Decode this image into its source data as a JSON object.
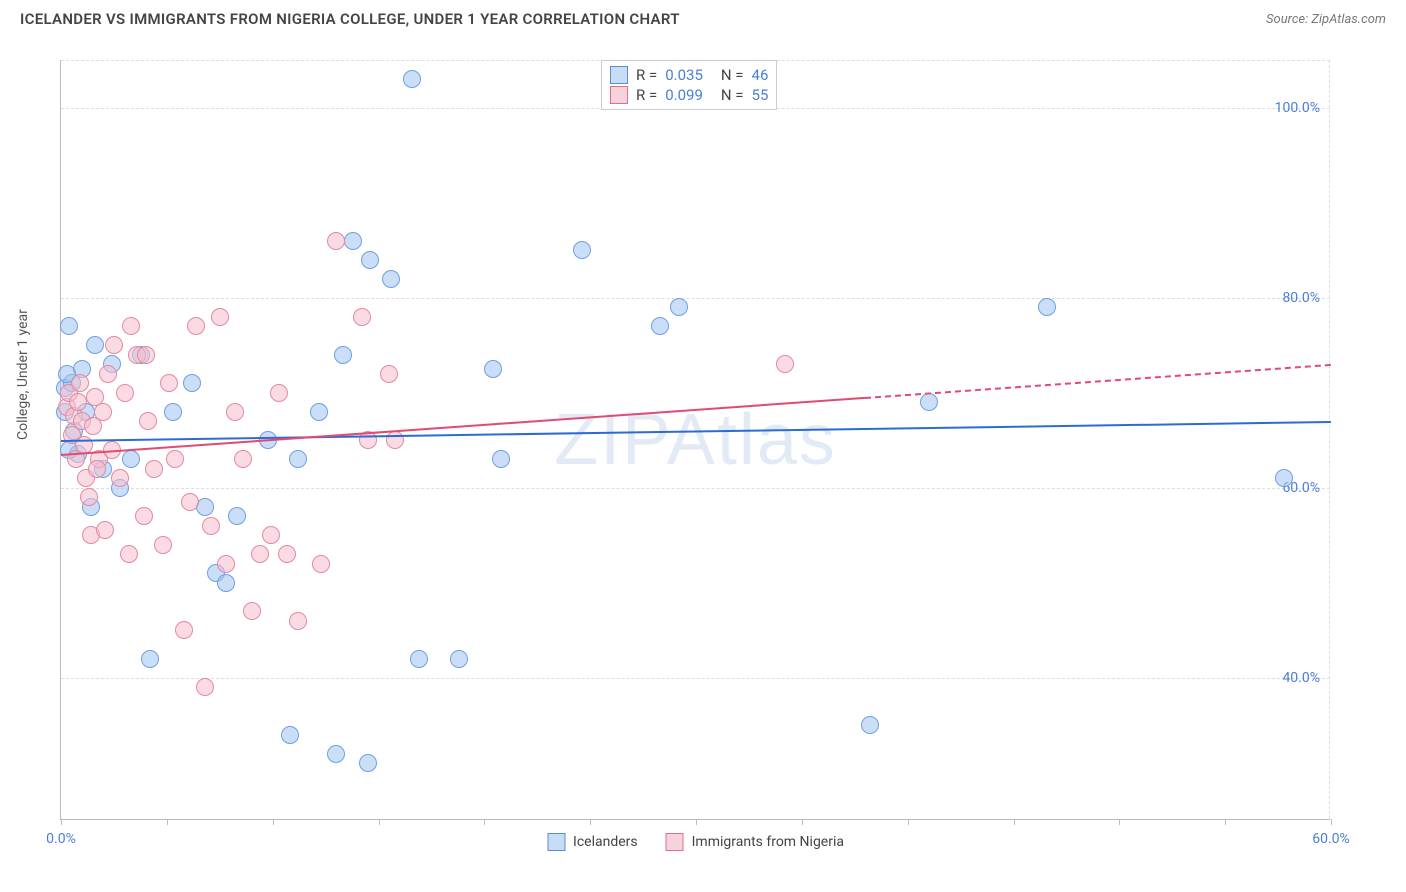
{
  "header": {
    "title": "ICELANDER VS IMMIGRANTS FROM NIGERIA COLLEGE, UNDER 1 YEAR CORRELATION CHART",
    "source": "Source: ZipAtlas.com"
  },
  "chart": {
    "type": "scatter",
    "watermark": "ZIPAtlas",
    "y_axis_label": "College, Under 1 year",
    "xlim": [
      0,
      60
    ],
    "ylim": [
      25,
      105
    ],
    "x_ticks": [
      0,
      5,
      10,
      15,
      20,
      25,
      30,
      35,
      40,
      45,
      50,
      55,
      60
    ],
    "x_tick_labels": {
      "0": "0.0%",
      "60": "60.0%"
    },
    "y_gridlines": [
      40,
      60,
      80,
      100
    ],
    "y_tick_labels": {
      "40": "40.0%",
      "60": "60.0%",
      "80": "80.0%",
      "100": "100.0%"
    },
    "marker_radius": 9,
    "marker_border_width": 1.5,
    "grid_color": "#dddddd",
    "axis_color": "#bbbbbb",
    "background_color": "#ffffff",
    "series": [
      {
        "name": "Icelanders",
        "fill": "rgba(160,195,240,0.55)",
        "stroke": "#6fa0e0",
        "swatch_fill": "#c7dcf5",
        "swatch_stroke": "#5b8dd6",
        "trend_color": "#2d6bd1",
        "trend": {
          "x1": 0,
          "y1": 65.0,
          "x2": 60,
          "y2": 67.0,
          "dash_from_x": null
        },
        "r": "0.035",
        "n": "46",
        "points": [
          [
            0.2,
            70.5
          ],
          [
            0.2,
            68
          ],
          [
            0.4,
            77
          ],
          [
            0.5,
            71
          ],
          [
            0.6,
            66
          ],
          [
            0.8,
            63.5
          ],
          [
            1.0,
            72.5
          ],
          [
            1.2,
            68
          ],
          [
            1.4,
            58
          ],
          [
            1.6,
            75
          ],
          [
            2.0,
            62
          ],
          [
            2.4,
            73
          ],
          [
            2.8,
            60
          ],
          [
            3.3,
            63
          ],
          [
            3.8,
            74
          ],
          [
            4.2,
            42
          ],
          [
            5.3,
            68
          ],
          [
            6.2,
            71
          ],
          [
            6.8,
            58
          ],
          [
            7.3,
            51
          ],
          [
            7.8,
            50
          ],
          [
            8.3,
            57
          ],
          [
            9.8,
            65
          ],
          [
            10.8,
            34
          ],
          [
            11.2,
            63
          ],
          [
            12.2,
            68
          ],
          [
            13.0,
            32
          ],
          [
            13.3,
            74
          ],
          [
            13.8,
            86
          ],
          [
            14.5,
            31
          ],
          [
            14.6,
            84
          ],
          [
            15.6,
            82
          ],
          [
            16.6,
            103
          ],
          [
            16.9,
            42
          ],
          [
            18.8,
            42
          ],
          [
            20.4,
            72.5
          ],
          [
            20.8,
            63
          ],
          [
            24.6,
            85
          ],
          [
            28.3,
            77
          ],
          [
            29.2,
            79
          ],
          [
            38.2,
            35
          ],
          [
            41.0,
            69
          ],
          [
            46.6,
            79
          ],
          [
            57.8,
            61
          ],
          [
            0.3,
            72
          ],
          [
            0.4,
            64
          ]
        ]
      },
      {
        "name": "Immigrants from Nigeria",
        "fill": "rgba(245,190,205,0.55)",
        "stroke": "#e389a0",
        "swatch_fill": "#f6d3dc",
        "swatch_stroke": "#e06f8c",
        "trend_color": "#e24a72",
        "trend": {
          "x1": 0,
          "y1": 63.5,
          "x2": 60,
          "y2": 73.0,
          "dash_from_x": 38
        },
        "r": "0.099",
        "n": "55",
        "points": [
          [
            0.3,
            68.5
          ],
          [
            0.4,
            70
          ],
          [
            0.6,
            67.5
          ],
          [
            0.8,
            69
          ],
          [
            1.0,
            67
          ],
          [
            1.2,
            61
          ],
          [
            1.4,
            55
          ],
          [
            1.6,
            69.5
          ],
          [
            1.8,
            63
          ],
          [
            2.0,
            68
          ],
          [
            2.2,
            72
          ],
          [
            2.5,
            75
          ],
          [
            2.8,
            61
          ],
          [
            3.0,
            70
          ],
          [
            3.3,
            77
          ],
          [
            3.6,
            74
          ],
          [
            3.9,
            57
          ],
          [
            4.1,
            67
          ],
          [
            4.4,
            62
          ],
          [
            4.8,
            54
          ],
          [
            5.1,
            71
          ],
          [
            5.4,
            63
          ],
          [
            5.8,
            45
          ],
          [
            6.1,
            58.5
          ],
          [
            6.4,
            77
          ],
          [
            6.8,
            39
          ],
          [
            7.1,
            56
          ],
          [
            7.5,
            78
          ],
          [
            7.8,
            52
          ],
          [
            8.2,
            68
          ],
          [
            8.6,
            63
          ],
          [
            9.0,
            47
          ],
          [
            9.4,
            53
          ],
          [
            9.9,
            55
          ],
          [
            10.3,
            70
          ],
          [
            10.7,
            53
          ],
          [
            11.2,
            46
          ],
          [
            12.3,
            52
          ],
          [
            13.0,
            86
          ],
          [
            14.2,
            78
          ],
          [
            14.5,
            65
          ],
          [
            15.5,
            72
          ],
          [
            15.8,
            65
          ],
          [
            34.2,
            73
          ],
          [
            0.5,
            65.5
          ],
          [
            0.7,
            63
          ],
          [
            0.9,
            71
          ],
          [
            1.1,
            64.5
          ],
          [
            1.3,
            59
          ],
          [
            1.5,
            66.5
          ],
          [
            1.7,
            62
          ],
          [
            2.1,
            55.5
          ],
          [
            2.4,
            64
          ],
          [
            3.2,
            53
          ],
          [
            4.0,
            74
          ]
        ]
      }
    ],
    "corr_legend_labels": {
      "r_prefix": "R =",
      "n_prefix": "N ="
    },
    "bottom_legend": [
      "Icelanders",
      "Immigrants from Nigeria"
    ]
  }
}
